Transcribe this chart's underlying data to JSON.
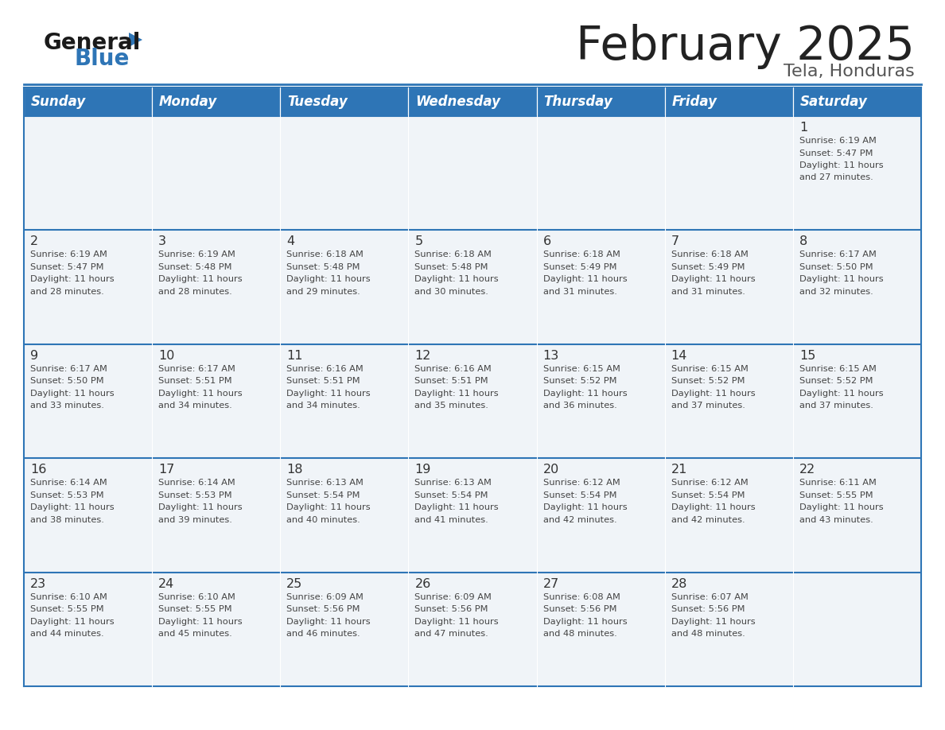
{
  "title": "February 2025",
  "subtitle": "Tela, Honduras",
  "days_of_week": [
    "Sunday",
    "Monday",
    "Tuesday",
    "Wednesday",
    "Thursday",
    "Friday",
    "Saturday"
  ],
  "header_bg": "#2E75B6",
  "header_text_color": "#FFFFFF",
  "cell_bg": "#F0F4F8",
  "cell_bg_white": "#FFFFFF",
  "cell_text_color": "#333333",
  "day_num_color": "#333333",
  "border_color": "#2E75B6",
  "title_color": "#222222",
  "subtitle_color": "#555555",
  "general_text_color": "#111111",
  "blue_color": "#2E75B6",
  "weeks": [
    [
      null,
      null,
      null,
      null,
      null,
      null,
      1
    ],
    [
      2,
      3,
      4,
      5,
      6,
      7,
      8
    ],
    [
      9,
      10,
      11,
      12,
      13,
      14,
      15
    ],
    [
      16,
      17,
      18,
      19,
      20,
      21,
      22
    ],
    [
      23,
      24,
      25,
      26,
      27,
      28,
      null
    ]
  ],
  "cell_data": {
    "1": {
      "sunrise": "6:19 AM",
      "sunset": "5:47 PM",
      "hours": "11 hours",
      "minutes": "and 27 minutes."
    },
    "2": {
      "sunrise": "6:19 AM",
      "sunset": "5:47 PM",
      "hours": "11 hours",
      "minutes": "and 28 minutes."
    },
    "3": {
      "sunrise": "6:19 AM",
      "sunset": "5:48 PM",
      "hours": "11 hours",
      "minutes": "and 28 minutes."
    },
    "4": {
      "sunrise": "6:18 AM",
      "sunset": "5:48 PM",
      "hours": "11 hours",
      "minutes": "and 29 minutes."
    },
    "5": {
      "sunrise": "6:18 AM",
      "sunset": "5:48 PM",
      "hours": "11 hours",
      "minutes": "and 30 minutes."
    },
    "6": {
      "sunrise": "6:18 AM",
      "sunset": "5:49 PM",
      "hours": "11 hours",
      "minutes": "and 31 minutes."
    },
    "7": {
      "sunrise": "6:18 AM",
      "sunset": "5:49 PM",
      "hours": "11 hours",
      "minutes": "and 31 minutes."
    },
    "8": {
      "sunrise": "6:17 AM",
      "sunset": "5:50 PM",
      "hours": "11 hours",
      "minutes": "and 32 minutes."
    },
    "9": {
      "sunrise": "6:17 AM",
      "sunset": "5:50 PM",
      "hours": "11 hours",
      "minutes": "and 33 minutes."
    },
    "10": {
      "sunrise": "6:17 AM",
      "sunset": "5:51 PM",
      "hours": "11 hours",
      "minutes": "and 34 minutes."
    },
    "11": {
      "sunrise": "6:16 AM",
      "sunset": "5:51 PM",
      "hours": "11 hours",
      "minutes": "and 34 minutes."
    },
    "12": {
      "sunrise": "6:16 AM",
      "sunset": "5:51 PM",
      "hours": "11 hours",
      "minutes": "and 35 minutes."
    },
    "13": {
      "sunrise": "6:15 AM",
      "sunset": "5:52 PM",
      "hours": "11 hours",
      "minutes": "and 36 minutes."
    },
    "14": {
      "sunrise": "6:15 AM",
      "sunset": "5:52 PM",
      "hours": "11 hours",
      "minutes": "and 37 minutes."
    },
    "15": {
      "sunrise": "6:15 AM",
      "sunset": "5:52 PM",
      "hours": "11 hours",
      "minutes": "and 37 minutes."
    },
    "16": {
      "sunrise": "6:14 AM",
      "sunset": "5:53 PM",
      "hours": "11 hours",
      "minutes": "and 38 minutes."
    },
    "17": {
      "sunrise": "6:14 AM",
      "sunset": "5:53 PM",
      "hours": "11 hours",
      "minutes": "and 39 minutes."
    },
    "18": {
      "sunrise": "6:13 AM",
      "sunset": "5:54 PM",
      "hours": "11 hours",
      "minutes": "and 40 minutes."
    },
    "19": {
      "sunrise": "6:13 AM",
      "sunset": "5:54 PM",
      "hours": "11 hours",
      "minutes": "and 41 minutes."
    },
    "20": {
      "sunrise": "6:12 AM",
      "sunset": "5:54 PM",
      "hours": "11 hours",
      "minutes": "and 42 minutes."
    },
    "21": {
      "sunrise": "6:12 AM",
      "sunset": "5:54 PM",
      "hours": "11 hours",
      "minutes": "and 42 minutes."
    },
    "22": {
      "sunrise": "6:11 AM",
      "sunset": "5:55 PM",
      "hours": "11 hours",
      "minutes": "and 43 minutes."
    },
    "23": {
      "sunrise": "6:10 AM",
      "sunset": "5:55 PM",
      "hours": "11 hours",
      "minutes": "and 44 minutes."
    },
    "24": {
      "sunrise": "6:10 AM",
      "sunset": "5:55 PM",
      "hours": "11 hours",
      "minutes": "and 45 minutes."
    },
    "25": {
      "sunrise": "6:09 AM",
      "sunset": "5:56 PM",
      "hours": "11 hours",
      "minutes": "and 46 minutes."
    },
    "26": {
      "sunrise": "6:09 AM",
      "sunset": "5:56 PM",
      "hours": "11 hours",
      "minutes": "and 47 minutes."
    },
    "27": {
      "sunrise": "6:08 AM",
      "sunset": "5:56 PM",
      "hours": "11 hours",
      "minutes": "and 48 minutes."
    },
    "28": {
      "sunrise": "6:07 AM",
      "sunset": "5:56 PM",
      "hours": "11 hours",
      "minutes": "and 48 minutes."
    }
  }
}
